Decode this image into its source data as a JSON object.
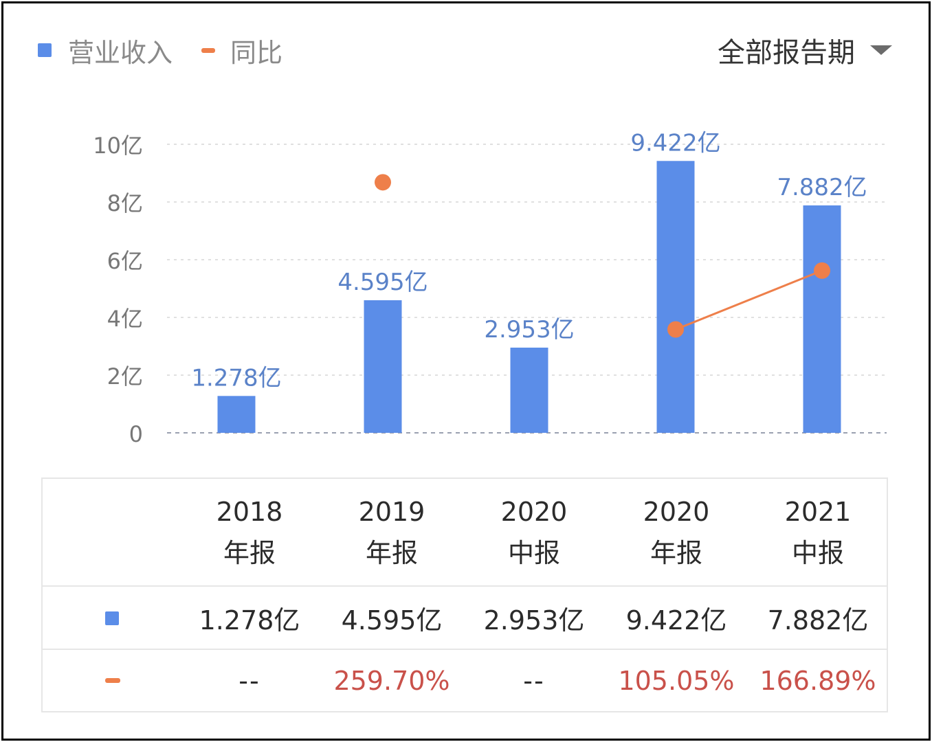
{
  "legend": {
    "revenue_label": "营业收入",
    "yoy_label": "同比"
  },
  "period_selector": {
    "label": "全部报告期"
  },
  "colors": {
    "bar": "#5b8de8",
    "line": "#ee7f4a",
    "percent_text": "#c9514a",
    "grid": "#d5d5d5"
  },
  "chart_data": {
    "type": "bar",
    "categories": [
      "2018年报",
      "2019年报",
      "2020中报",
      "2020年报",
      "2021中报"
    ],
    "series": [
      {
        "name": "营业收入",
        "unit": "亿",
        "values": [
          1.278,
          4.595,
          2.953,
          9.422,
          7.882
        ],
        "labels": [
          "1.278亿",
          "4.595亿",
          "2.953亿",
          "9.422亿",
          "7.882亿"
        ]
      },
      {
        "name": "同比",
        "kind": "line",
        "values": [
          null,
          259.7,
          null,
          105.05,
          166.89
        ],
        "labels": [
          "--",
          "259.70%",
          "--",
          "105.05%",
          "166.89%"
        ]
      }
    ],
    "ylim": [
      0,
      10
    ],
    "yticks": [
      0,
      2,
      4,
      6,
      8,
      10
    ],
    "ytick_labels": [
      "0",
      "2亿",
      "4亿",
      "6亿",
      "8亿",
      "10亿"
    ],
    "grid": true,
    "legend_position": "top-left"
  },
  "table": {
    "columns": [
      {
        "year": "2018",
        "type": "年报"
      },
      {
        "year": "2019",
        "type": "年报"
      },
      {
        "year": "2020",
        "type": "中报"
      },
      {
        "year": "2020",
        "type": "年报"
      },
      {
        "year": "2021",
        "type": "中报"
      }
    ],
    "revenue_row": [
      "1.278亿",
      "4.595亿",
      "2.953亿",
      "9.422亿",
      "7.882亿"
    ],
    "yoy_row": [
      "--",
      "259.70%",
      "--",
      "105.05%",
      "166.89%"
    ]
  }
}
